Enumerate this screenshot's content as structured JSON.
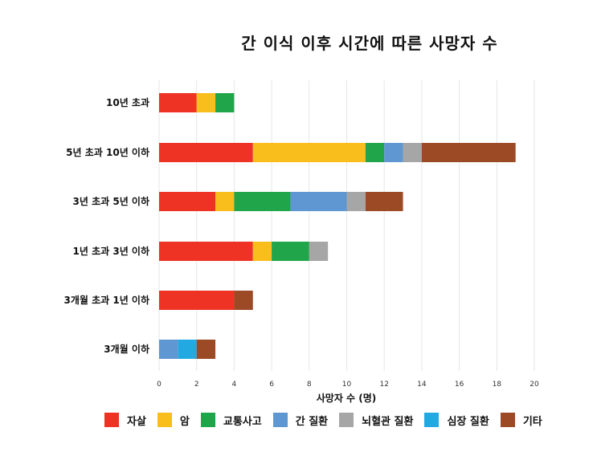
{
  "chart_data": {
    "type": "bar",
    "orientation": "horizontal",
    "stacked": true,
    "title": "간 이식 이후 시간에 따른 사망자 수",
    "xlabel": "사망자 수 (명)",
    "ylabel": "",
    "xlim": [
      0,
      20
    ],
    "xticks": [
      "0",
      "2",
      "4",
      "6",
      "8",
      "10",
      "12",
      "14",
      "16",
      "18",
      "20"
    ],
    "grid": "vertical",
    "legend_position": "bottom",
    "categories": [
      "10년 초과",
      "5년 초과 10년 이하",
      "3년 초과 5년 이하",
      "1년 초과 3년 이하",
      "3개월 초과 1년 이하",
      "3개월 이하"
    ],
    "series": [
      {
        "name": "자살",
        "color": "#EE3224",
        "values": [
          2,
          5,
          3,
          5,
          4,
          0
        ]
      },
      {
        "name": "암",
        "color": "#F9BD1C",
        "values": [
          1,
          6,
          1,
          1,
          0,
          0
        ]
      },
      {
        "name": "교통사고",
        "color": "#20A54A",
        "values": [
          1,
          1,
          3,
          2,
          0,
          0
        ]
      },
      {
        "name": "간 질환",
        "color": "#5F97D2",
        "values": [
          0,
          1,
          3,
          0,
          0,
          1
        ]
      },
      {
        "name": "뇌혈관 질환",
        "color": "#A6A6A6",
        "values": [
          0,
          1,
          1,
          1,
          0,
          0
        ]
      },
      {
        "name": "심장 질환",
        "color": "#22A9E1",
        "values": [
          0,
          0,
          0,
          0,
          0,
          1
        ]
      },
      {
        "name": "기타",
        "color": "#9C4A26",
        "values": [
          0,
          5,
          2,
          0,
          1,
          1
        ]
      }
    ]
  }
}
